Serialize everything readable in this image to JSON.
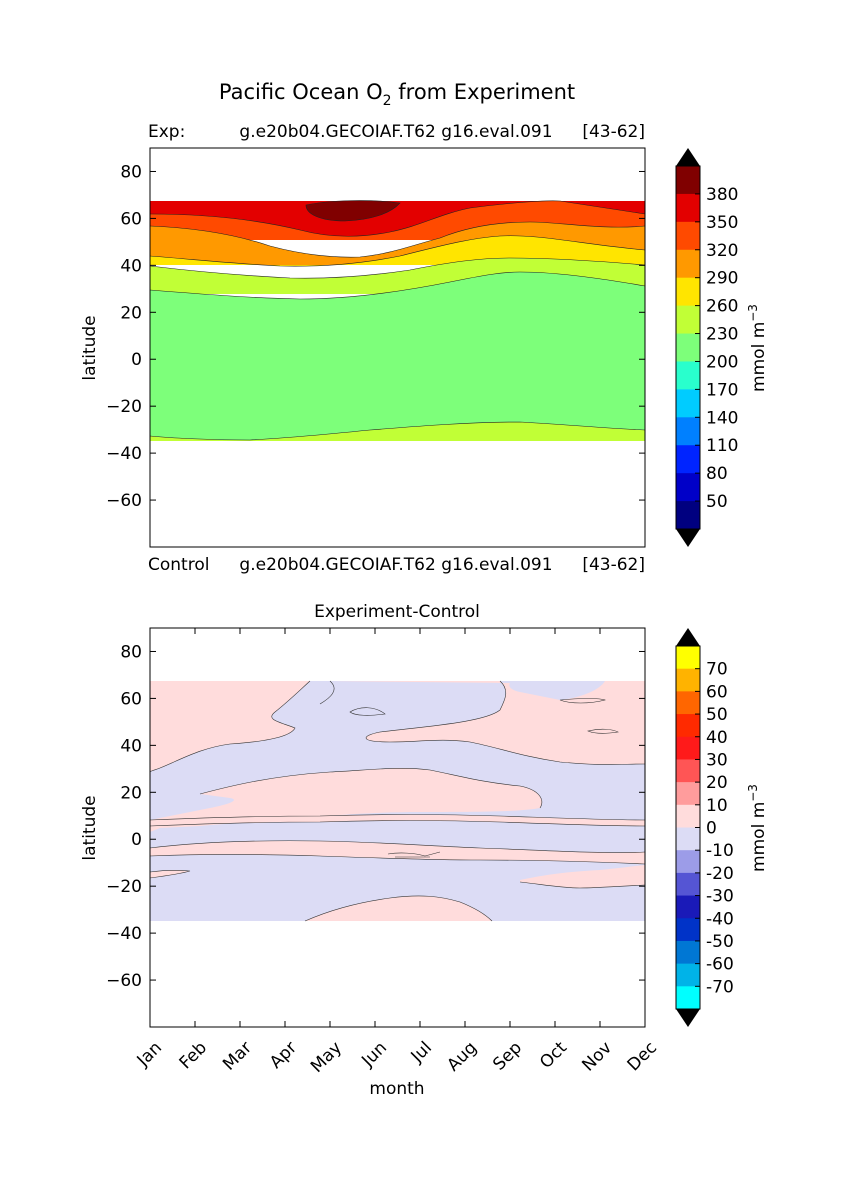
{
  "figure": {
    "title_main": "Pacific Ocean O",
    "title_sub": "2",
    "title_rest": " from Experiment"
  },
  "top": {
    "label_left": "Exp:",
    "label_center": "g.e20b04.GECOIAF.T62 g16.eval.091",
    "label_right": "[43-62]",
    "colorbar_unit": "mmol m",
    "colorbar_exp": "−3"
  },
  "middle": {
    "label_left": "Control",
    "label_center": "g.e20b04.GECOIAF.T62 g16.eval.091",
    "label_right": "[43-62]"
  },
  "bottom": {
    "title": "Experiment-Control",
    "xlabel": "month",
    "colorbar_unit": "mmol m",
    "colorbar_exp": "−3"
  },
  "chart_data": [
    {
      "type": "contour",
      "title": "Pacific Ocean O2 from Experiment",
      "ylabel": "latitude",
      "ylim": [
        -80,
        90
      ],
      "yticks": [
        "80",
        "60",
        "40",
        "20",
        "0",
        "−20",
        "−40",
        "−60"
      ],
      "colorbar_levels": [
        "50",
        "80",
        "110",
        "140",
        "170",
        "200",
        "230",
        "260",
        "290",
        "320",
        "350",
        "380"
      ],
      "colorbar_colors": [
        "#000080",
        "#0000c8",
        "#0024ff",
        "#0080ff",
        "#00ccff",
        "#29ffcd",
        "#7dff7a",
        "#c1ff36",
        "#ffe500",
        "#ff9900",
        "#ff4a00",
        "#e30000",
        "#800000"
      ],
      "colorbar_extend_low": "#000000",
      "colorbar_extend_high": "#000000"
    },
    {
      "type": "contour",
      "title": "Experiment-Control",
      "xlabel": "month",
      "ylabel": "latitude",
      "ylim": [
        -80,
        90
      ],
      "yticks": [
        "80",
        "60",
        "40",
        "20",
        "0",
        "−20",
        "−40",
        "−60"
      ],
      "xticks": [
        "Jan",
        "Feb",
        "Mar",
        "Apr",
        "May",
        "Jun",
        "Jul",
        "Aug",
        "Sep",
        "Oct",
        "Nov",
        "Dec"
      ],
      "colorbar_levels": [
        "70",
        "60",
        "50",
        "40",
        "30",
        "20",
        "10",
        "0",
        "-10",
        "-20",
        "-30",
        "-40",
        "-50",
        "-60",
        "-70"
      ],
      "colorbar_colors": [
        "#ffff00",
        "#ffb300",
        "#ff6600",
        "#ff2a00",
        "#ff1a1a",
        "#ff5555",
        "#ff9c9c",
        "#ffdcdc",
        "#dcdcf5",
        "#9c9ce8",
        "#5555d4",
        "#1a1ab8",
        "#0033c8",
        "#0077d4",
        "#00b3e8",
        "#00ffff"
      ],
      "colorbar_extend_low": "#000000",
      "colorbar_extend_high": "#000000"
    }
  ]
}
